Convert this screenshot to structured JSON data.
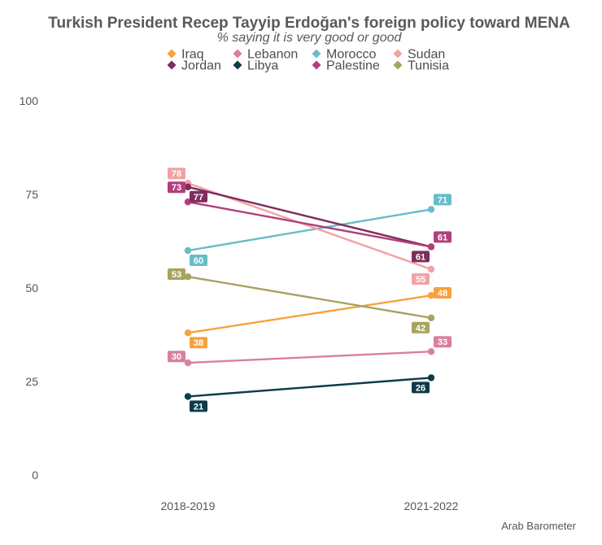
{
  "chart_data": {
    "type": "line",
    "title": "Turkish President Recep Tayyip Erdoğan's foreign policy toward MENA",
    "subtitle": "% saying it is very good or good",
    "caption": "Arab Barometer",
    "xlabel": "",
    "ylabel": "",
    "categories": [
      "2018-2019",
      "2021-2022"
    ],
    "ylim": [
      0,
      100
    ],
    "yticks": [
      0,
      25,
      50,
      75,
      100
    ],
    "grid": false,
    "legend_position": "top",
    "series": [
      {
        "name": "Iraq",
        "color": "#F7A13C",
        "values": [
          38,
          48
        ]
      },
      {
        "name": "Lebanon",
        "color": "#D97FA0",
        "values": [
          30,
          33
        ]
      },
      {
        "name": "Morocco",
        "color": "#66BDC9",
        "values": [
          60,
          71
        ]
      },
      {
        "name": "Sudan",
        "color": "#F2A2A2",
        "values": [
          78,
          55
        ]
      },
      {
        "name": "Jordan",
        "color": "#7E2D5C",
        "values": [
          77,
          61
        ]
      },
      {
        "name": "Libya",
        "color": "#0D3C4A",
        "values": [
          21,
          26
        ]
      },
      {
        "name": "Palestine",
        "color": "#B13F7D",
        "values": [
          73,
          61
        ]
      },
      {
        "name": "Tunisia",
        "color": "#A8A35E",
        "values": [
          53,
          42
        ]
      }
    ]
  }
}
